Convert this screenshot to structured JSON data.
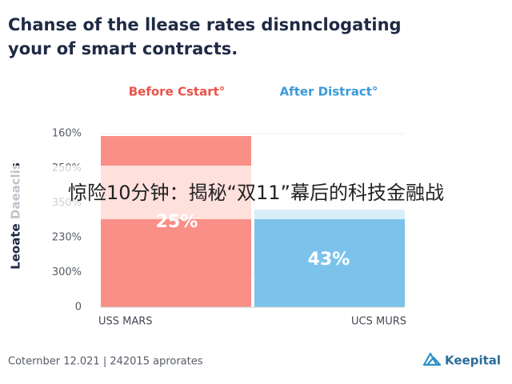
{
  "chart_data": {
    "type": "bar",
    "title": [
      "Chanse of the llease rates disnnclogating",
      "your of smart contracts."
    ],
    "y_label": "Leoate Daeaclis",
    "categories": [
      "USS MARS",
      "UCS MURS"
    ],
    "series": [
      {
        "name": "Before Cstart°",
        "color": "#fa8f87",
        "legend_color": "#e8534a",
        "values": [
          4.93,
          null
        ]
      },
      {
        "name": "After Distract°",
        "color": "#7cc3ec",
        "legend_color": "#3a9ad9",
        "values": [
          null,
          2.81
        ]
      }
    ],
    "annotations": [
      "25%",
      "43%"
    ],
    "ylim": [
      0,
      5
    ],
    "yticks": [
      {
        "value": 0,
        "label": "0"
      },
      {
        "value": 1,
        "label": "300%"
      },
      {
        "value": 2,
        "label": "230%"
      },
      {
        "value": 3,
        "label": "350%"
      },
      {
        "value": 4,
        "label": "250%"
      },
      {
        "value": 5,
        "label": "160%"
      }
    ],
    "footer": "Coternber 12.021 | 242015 aprorates",
    "brand": "Keepital",
    "overlay_text": "惊险10分钟：揭秘“双11”幕后的科技金融战"
  }
}
